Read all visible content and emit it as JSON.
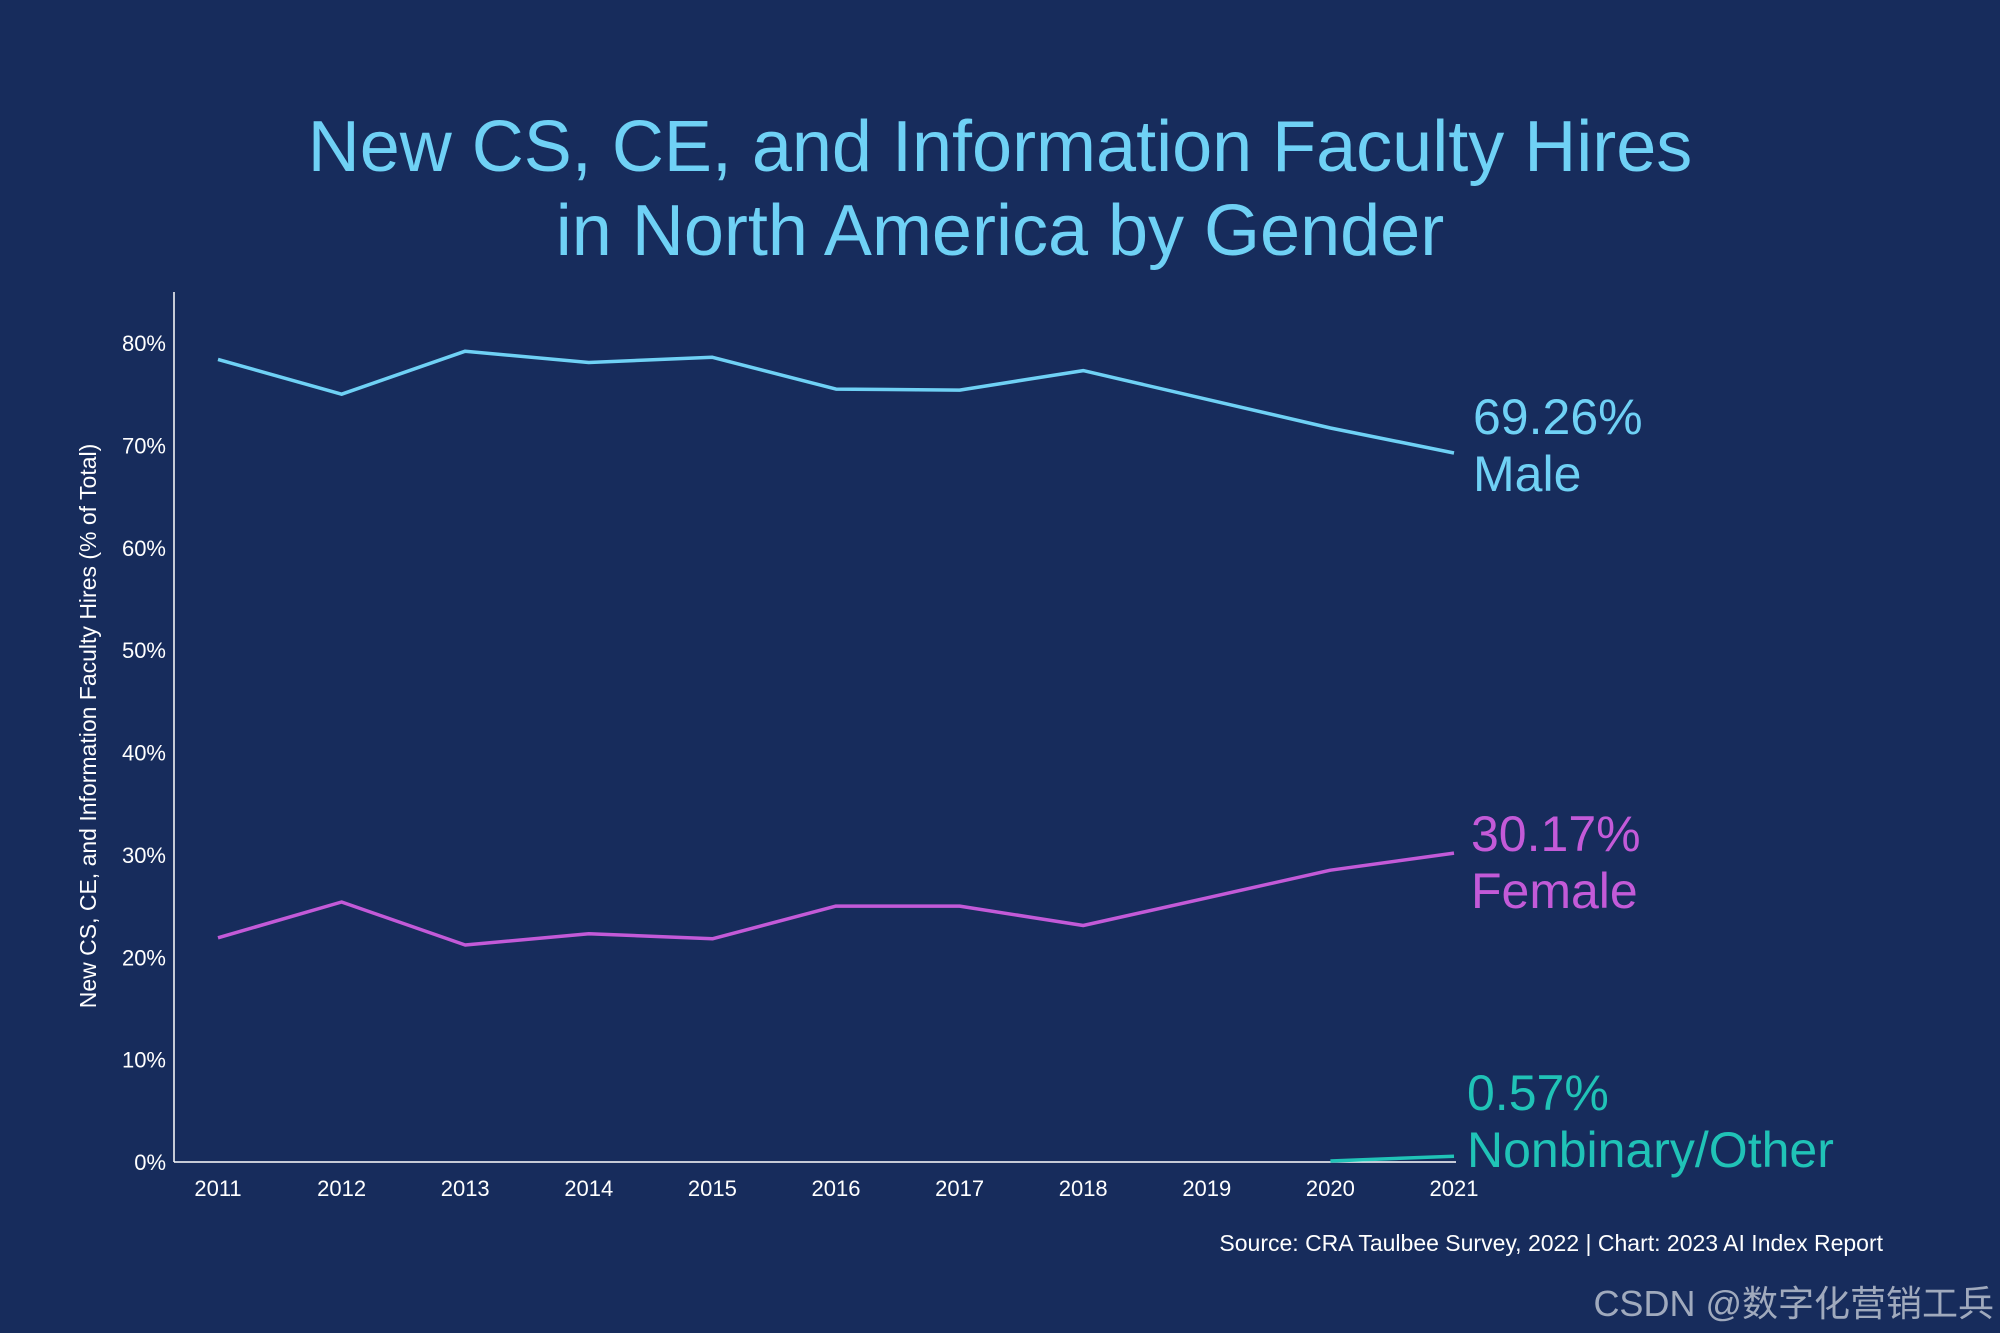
{
  "chart_data": {
    "type": "line",
    "title": [
      "New CS, CE, and Information Faculty Hires",
      "in North America by Gender"
    ],
    "ylabel": "New CS, CE, and Information Faculty Hires (% of Total)",
    "xlabel": "",
    "x": [
      2011,
      2012,
      2013,
      2014,
      2015,
      2016,
      2017,
      2018,
      2019,
      2020,
      2021
    ],
    "ylim": [
      0,
      85
    ],
    "yticks": [
      0,
      10,
      20,
      30,
      40,
      50,
      60,
      70,
      80
    ],
    "ytick_labels": [
      "0%",
      "10%",
      "20%",
      "30%",
      "40%",
      "50%",
      "60%",
      "70%",
      "80%"
    ],
    "xtick_labels": [
      "2011",
      "2012",
      "2013",
      "2014",
      "2015",
      "2016",
      "2017",
      "2018",
      "2019",
      "2020",
      "2021"
    ],
    "grid": false,
    "series": [
      {
        "name": "Male",
        "color": "#6fd1f5",
        "x": [
          2011,
          2012,
          2013,
          2014,
          2015,
          2016,
          2017,
          2018,
          2019,
          2020,
          2021
        ],
        "values": [
          78.4,
          75.0,
          79.2,
          78.1,
          78.6,
          75.5,
          75.4,
          77.3,
          74.5,
          71.7,
          69.26
        ],
        "end_value_label": "69.26%",
        "end_name_label": "Male"
      },
      {
        "name": "Female",
        "color": "#c35ad8",
        "x": [
          2011,
          2012,
          2013,
          2014,
          2015,
          2016,
          2017,
          2018,
          2019,
          2020,
          2021
        ],
        "values": [
          21.9,
          25.4,
          21.2,
          22.3,
          21.8,
          25.0,
          25.0,
          23.1,
          25.8,
          28.5,
          30.17
        ],
        "end_value_label": "30.17%",
        "end_name_label": "Female"
      },
      {
        "name": "Nonbinary/Other",
        "color": "#20c3b7",
        "x": [
          2020,
          2021
        ],
        "values": [
          0.1,
          0.57
        ],
        "end_value_label": "0.57%",
        "end_name_label": "Nonbinary/Other"
      }
    ],
    "source": "Source: CRA Taulbee Survey, 2022 | Chart: 2023 AI Index Report"
  },
  "watermark": "CSDN @数字化营销工兵"
}
